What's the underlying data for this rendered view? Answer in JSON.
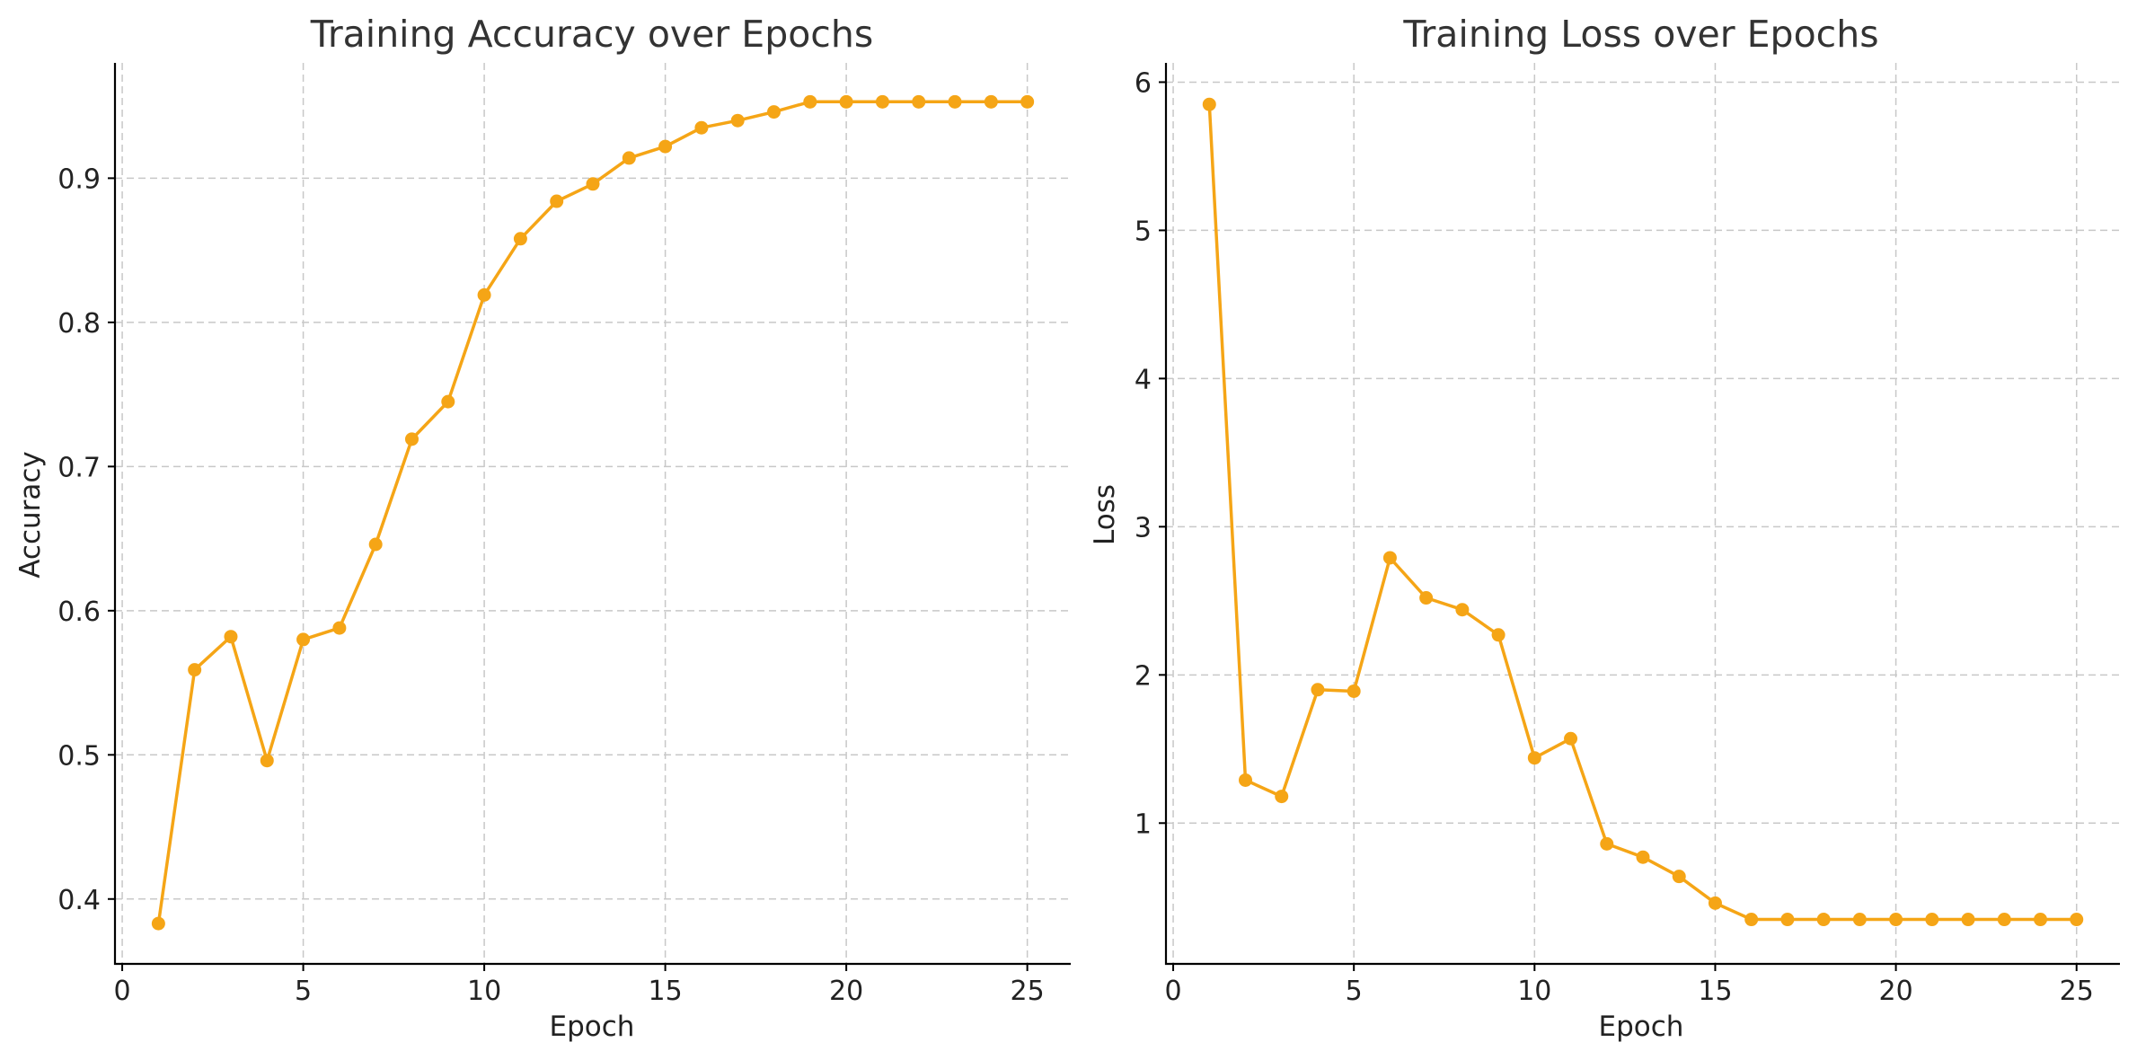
{
  "colors": {
    "series": "#f5a516"
  },
  "chart_data": [
    {
      "type": "line",
      "title": "Training Accuracy over Epochs",
      "xlabel": "Epoch",
      "ylabel": "Accuracy",
      "xlim": [
        -0.2,
        26.2
      ],
      "ylim": [
        0.355,
        0.98
      ],
      "xticks": [
        0,
        5,
        10,
        15,
        20,
        25
      ],
      "yticks": [
        0.4,
        0.5,
        0.6,
        0.7,
        0.8,
        0.9
      ],
      "grid": true,
      "series": [
        {
          "x": [
            1,
            2,
            3,
            4,
            5,
            6,
            7,
            8,
            9,
            10,
            11,
            12,
            13,
            14,
            15,
            16,
            17,
            18,
            19,
            20,
            21,
            22,
            23,
            24,
            25
          ],
          "values": [
            0.383,
            0.559,
            0.582,
            0.496,
            0.58,
            0.588,
            0.646,
            0.719,
            0.745,
            0.819,
            0.858,
            0.884,
            0.896,
            0.914,
            0.922,
            0.935,
            0.94,
            0.946,
            0.953,
            0.953,
            0.953,
            0.953,
            0.953,
            0.953,
            0.953
          ]
        }
      ]
    },
    {
      "type": "line",
      "title": "Training Loss over Epochs",
      "xlabel": "Epoch",
      "ylabel": "Loss",
      "xlim": [
        -0.2,
        26.2
      ],
      "ylim": [
        0.05,
        6.13
      ],
      "xticks": [
        0,
        5,
        10,
        15,
        20,
        25
      ],
      "yticks": [
        1,
        2,
        3,
        4,
        5,
        6
      ],
      "grid": true,
      "series": [
        {
          "x": [
            1,
            2,
            3,
            4,
            5,
            6,
            7,
            8,
            9,
            10,
            11,
            12,
            13,
            14,
            15,
            16,
            17,
            18,
            19,
            20,
            21,
            22,
            23,
            24,
            25
          ],
          "values": [
            5.85,
            1.29,
            1.18,
            1.9,
            1.89,
            2.79,
            2.52,
            2.44,
            2.27,
            1.44,
            1.57,
            0.86,
            0.77,
            0.64,
            0.46,
            0.35,
            0.35,
            0.35,
            0.35,
            0.35,
            0.35,
            0.35,
            0.35,
            0.35,
            0.35
          ]
        }
      ]
    }
  ]
}
